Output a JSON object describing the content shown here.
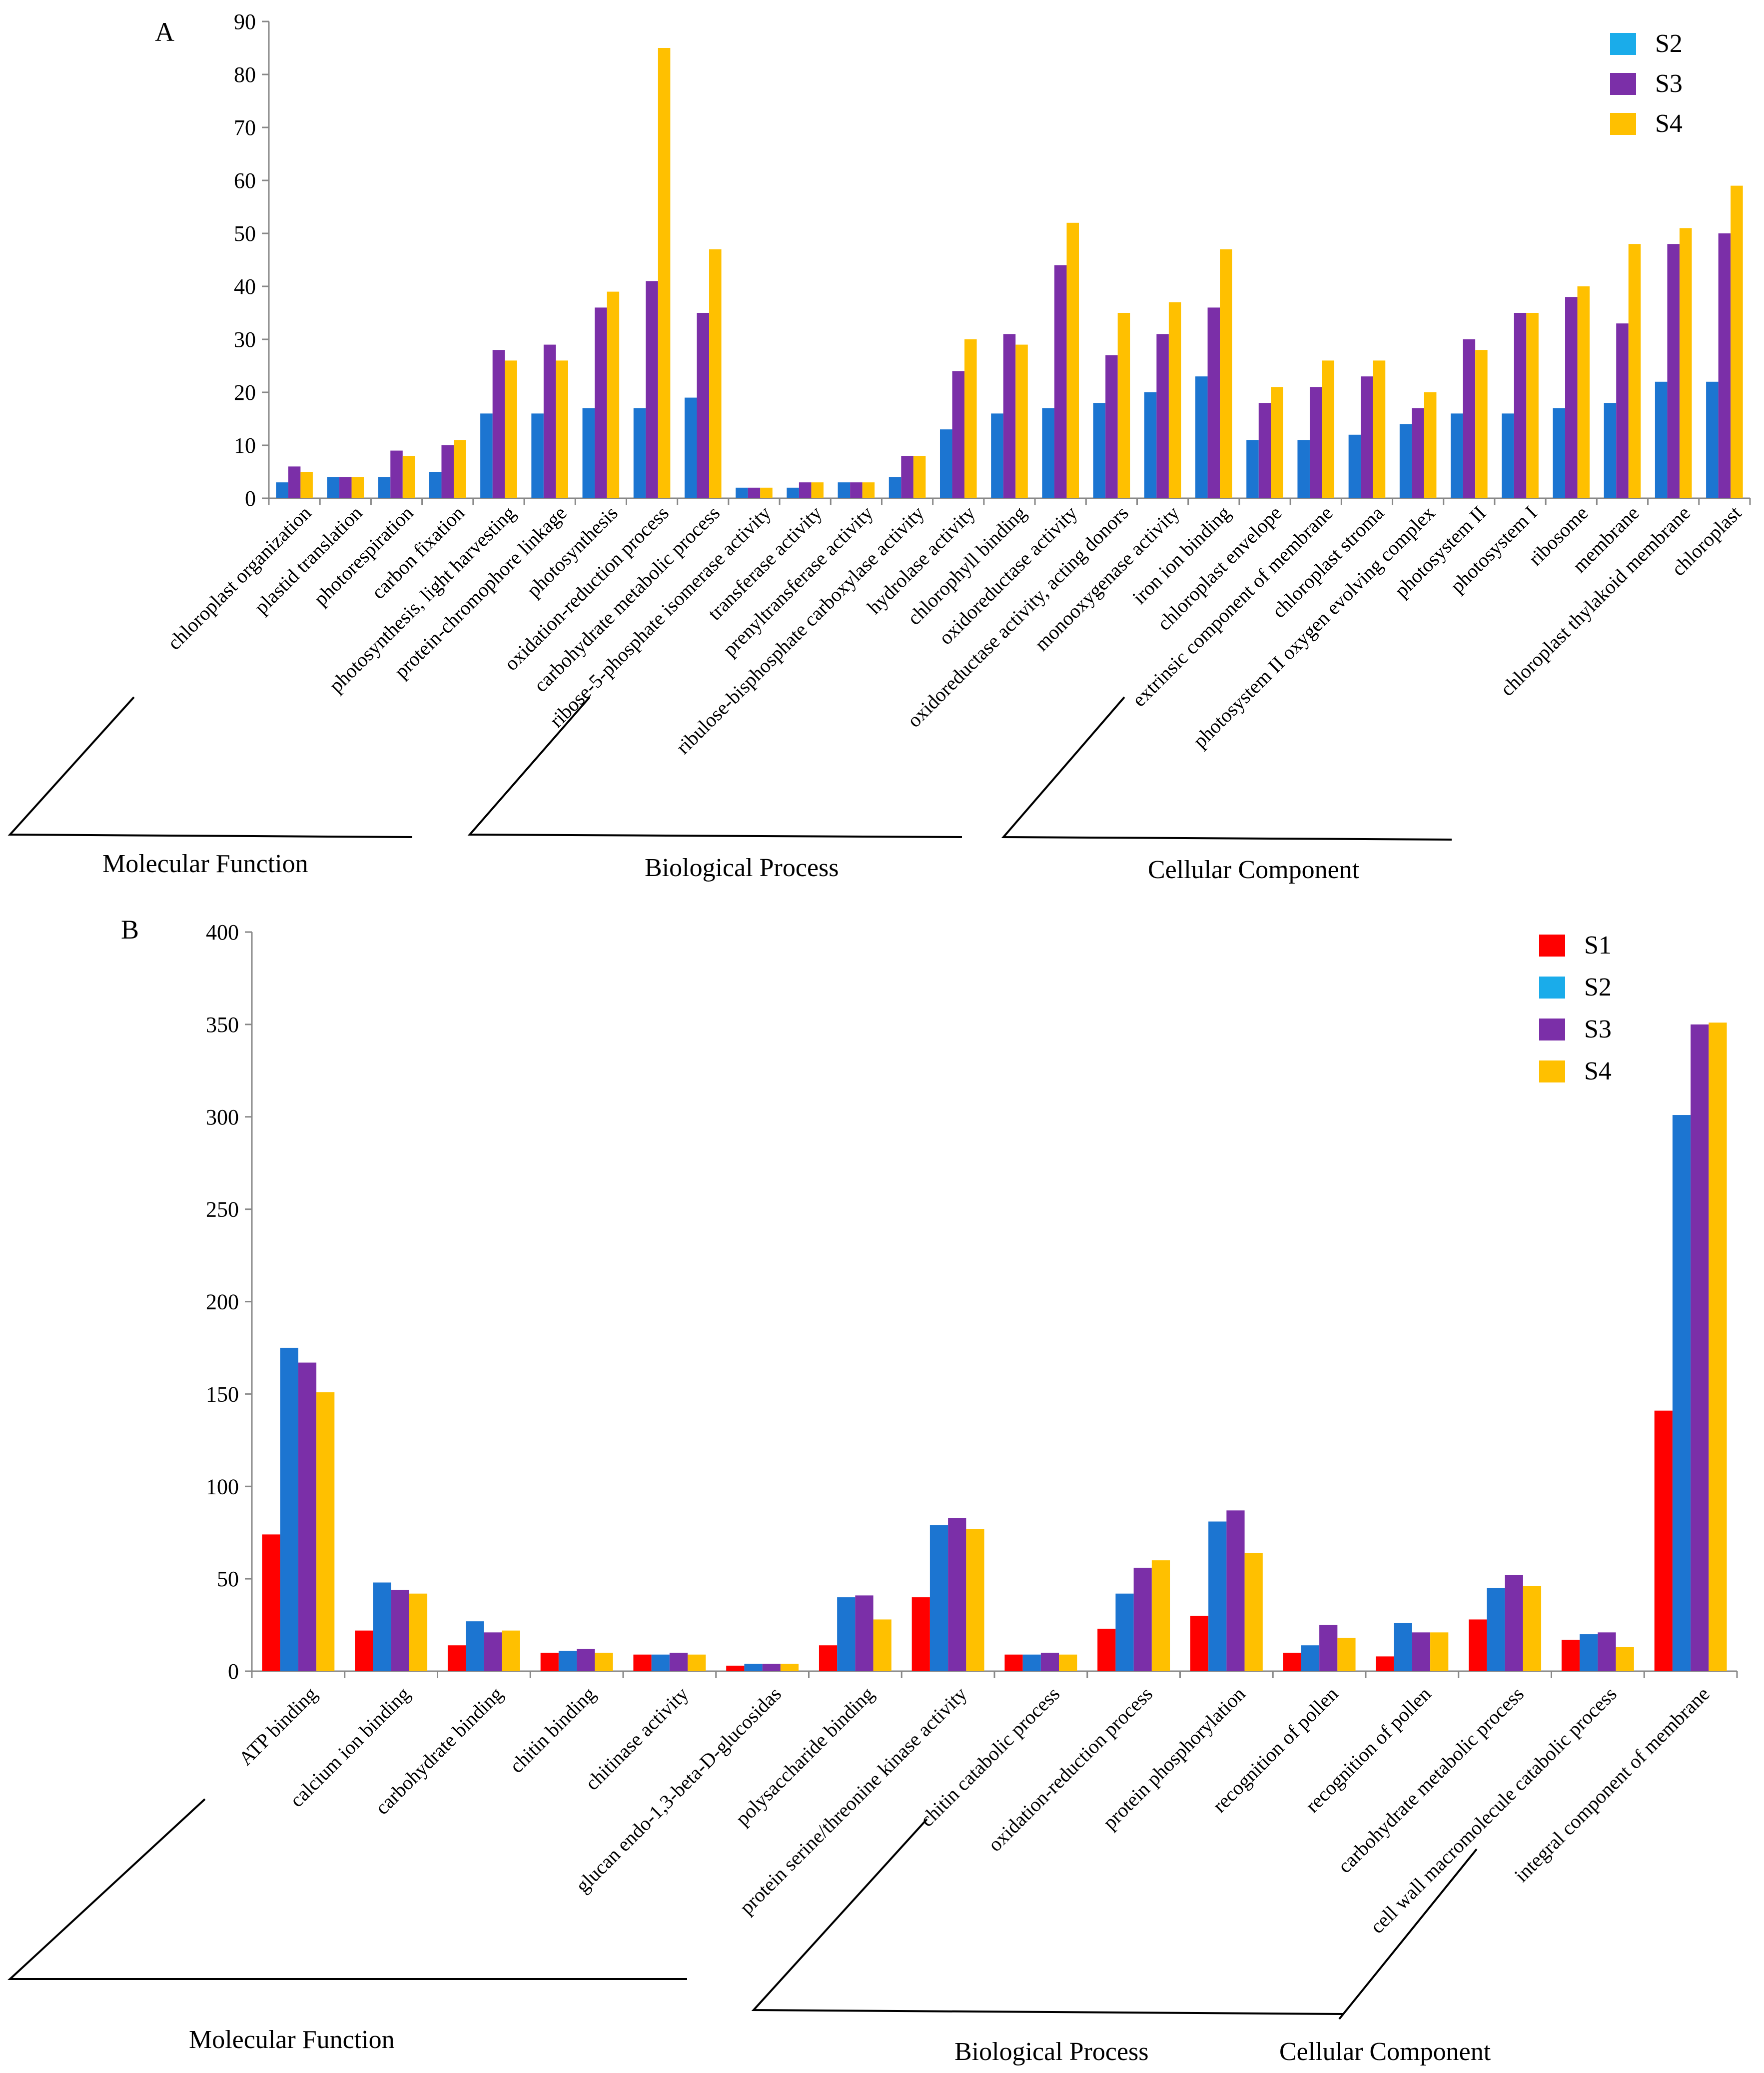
{
  "chart_data": [
    {
      "id": "A",
      "type": "bar",
      "panel_label": "A",
      "ylim": [
        0,
        90
      ],
      "yticks": [
        0,
        10,
        20,
        30,
        40,
        50,
        60,
        70,
        80,
        90
      ],
      "legend_position": "top-right",
      "categories": [
        "chloroplast organization",
        "plastid translation",
        "photorespiration",
        "carbon fixation",
        "photosynthesis, light harvesting",
        "protein-chromophore linkage",
        "photosynthesis",
        "oxidation-reduction process",
        "carbohydrate metabolic process",
        "ribose-5-phosphate isomerase activity",
        "transferase activity",
        "prenyltransferase activity",
        "ribulose-bisphosphate carboxylase activity",
        "hydrolase activity",
        "chlorophyll binding",
        "oxidoreductase activity",
        "oxidoreductase activity, acting donors",
        "monooxygenase activity",
        "iron ion binding",
        "chloroplast envelope",
        "extrinsic component of membrane",
        "chloroplast stroma",
        "photosystem II oxygen evolving complex",
        "photosystem II",
        "photosystem I",
        "ribosome",
        "membrane",
        "chloroplast thylakoid membrane",
        "chloroplast"
      ],
      "series": [
        {
          "name": "S2",
          "color": "#1C75D1",
          "legend_color": "#1AACEA",
          "values": [
            3,
            4,
            4,
            5,
            16,
            16,
            17,
            17,
            19,
            2,
            2,
            3,
            4,
            13,
            16,
            17,
            18,
            20,
            23,
            11,
            11,
            12,
            14,
            16,
            16,
            17,
            18,
            22,
            22
          ]
        },
        {
          "name": "S3",
          "color": "#7B2FA8",
          "values": [
            6,
            4,
            9,
            10,
            28,
            29,
            36,
            41,
            35,
            2,
            3,
            3,
            8,
            24,
            31,
            44,
            27,
            31,
            36,
            18,
            21,
            23,
            17,
            30,
            35,
            38,
            33,
            48,
            50
          ]
        },
        {
          "name": "S4",
          "color": "#FFC000",
          "values": [
            5,
            4,
            8,
            11,
            26,
            26,
            39,
            85,
            47,
            2,
            3,
            3,
            8,
            30,
            29,
            52,
            35,
            37,
            47,
            21,
            26,
            26,
            20,
            28,
            35,
            40,
            48,
            51,
            59
          ]
        }
      ],
      "groups": [
        "Molecular Function",
        "Biological Process",
        "Cellular Component"
      ]
    },
    {
      "id": "B",
      "type": "bar",
      "panel_label": "B",
      "ylim": [
        0,
        400
      ],
      "yticks": [
        0,
        50,
        100,
        150,
        200,
        250,
        300,
        350,
        400
      ],
      "legend_position": "top-right",
      "categories": [
        "ATP binding",
        "calcium ion binding",
        "carbohydrate binding",
        "chitin binding",
        "chitinase activity",
        "glucan endo-1,3-beta-D-glucosidas",
        "polysaccharide binding",
        "protein serine/threonine kinase activity",
        "chitin catabolic process",
        "oxidation-reduction process",
        "protein phosphorylation",
        "recognition of pollen",
        "recognition of pollen",
        "carbohydrate metabolic process",
        "cell wall macromolecule catabolic process",
        "integral component of membrane"
      ],
      "series": [
        {
          "name": "S1",
          "color": "#FF0000",
          "values": [
            74,
            22,
            14,
            10,
            9,
            3,
            14,
            40,
            9,
            23,
            30,
            10,
            8,
            28,
            17,
            141
          ]
        },
        {
          "name": "S2",
          "color": "#1C75D1",
          "legend_color": "#1AACEA",
          "values": [
            175,
            48,
            27,
            11,
            9,
            4,
            40,
            79,
            9,
            42,
            81,
            14,
            26,
            45,
            20,
            301
          ]
        },
        {
          "name": "S3",
          "color": "#7B2FA8",
          "values": [
            167,
            44,
            21,
            12,
            10,
            4,
            41,
            83,
            10,
            56,
            87,
            25,
            21,
            52,
            21,
            350
          ]
        },
        {
          "name": "S4",
          "color": "#FFC000",
          "values": [
            151,
            42,
            22,
            10,
            9,
            4,
            28,
            77,
            9,
            60,
            64,
            18,
            21,
            46,
            13,
            351
          ]
        }
      ],
      "groups": [
        "Molecular Function",
        "Biological Process",
        "Cellular Component"
      ]
    }
  ]
}
